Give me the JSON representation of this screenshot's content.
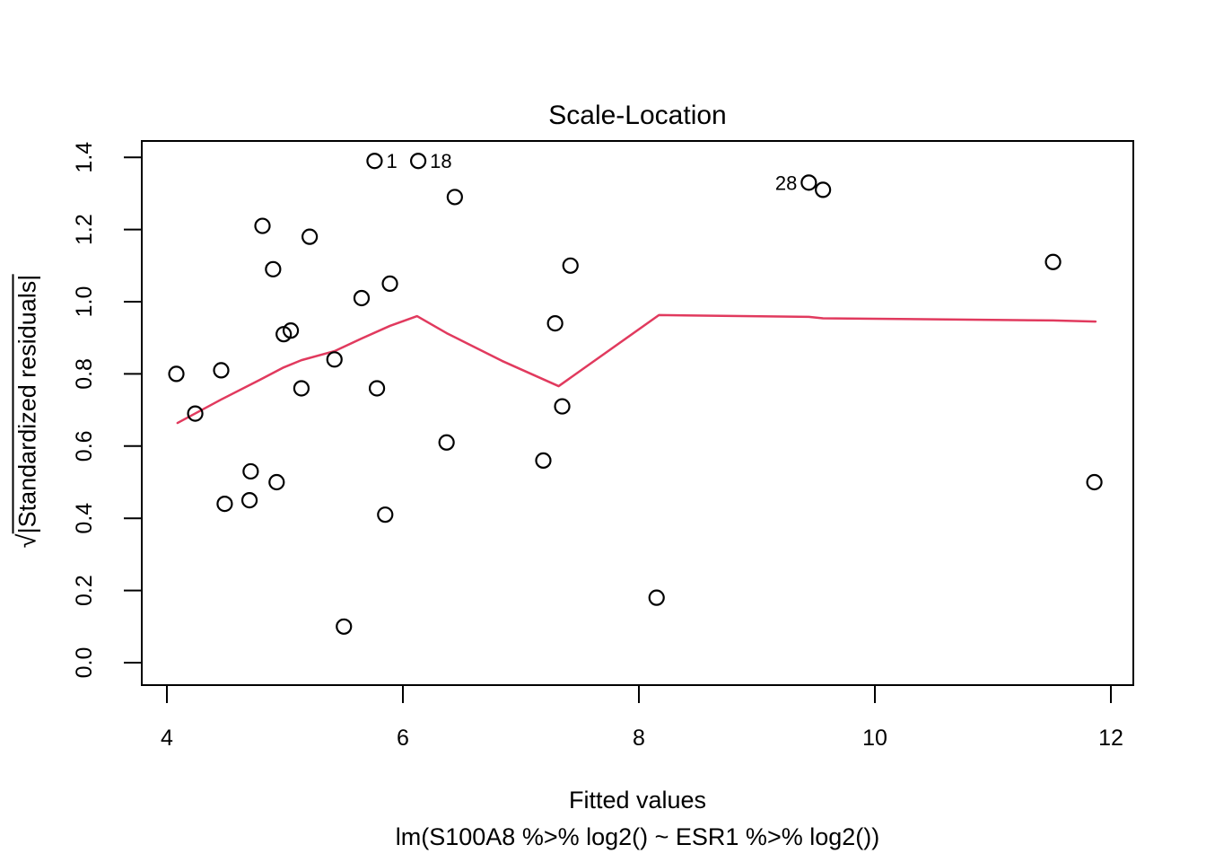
{
  "chart_data": {
    "type": "scatter",
    "title": "Scale-Location",
    "xlabel": "Fitted values",
    "sublabel": "lm(S100A8 %>% log2() ~ ESR1 %>% log2())",
    "ylabel_parts": {
      "radical": "√",
      "radicand": "|Standardized residuals|"
    },
    "xlim": [
      4,
      12
    ],
    "ylim": [
      0.0,
      1.4
    ],
    "grid": false,
    "legend": "none",
    "point_color": "#000000",
    "smooth_color": "#E13A5E",
    "xticks": [
      {
        "v": 4,
        "label": "4"
      },
      {
        "v": 6,
        "label": "6"
      },
      {
        "v": 8,
        "label": "8"
      },
      {
        "v": 10,
        "label": "10"
      },
      {
        "v": 12,
        "label": "12"
      }
    ],
    "yticks": [
      {
        "v": 0.0,
        "label": "0.0"
      },
      {
        "v": 0.2,
        "label": "0.2"
      },
      {
        "v": 0.4,
        "label": "0.4"
      },
      {
        "v": 0.6,
        "label": "0.6"
      },
      {
        "v": 0.8,
        "label": "0.8"
      },
      {
        "v": 1.0,
        "label": "1.0"
      },
      {
        "v": 1.2,
        "label": "1.2"
      },
      {
        "v": 1.4,
        "label": "1.4"
      }
    ],
    "points": [
      {
        "x": 4.08,
        "y": 0.8
      },
      {
        "x": 4.24,
        "y": 0.69
      },
      {
        "x": 4.46,
        "y": 0.81
      },
      {
        "x": 4.49,
        "y": 0.44
      },
      {
        "x": 4.7,
        "y": 0.45
      },
      {
        "x": 4.71,
        "y": 0.53
      },
      {
        "x": 4.81,
        "y": 1.21
      },
      {
        "x": 4.9,
        "y": 1.09
      },
      {
        "x": 4.93,
        "y": 0.5
      },
      {
        "x": 4.99,
        "y": 0.91
      },
      {
        "x": 5.05,
        "y": 0.92
      },
      {
        "x": 5.14,
        "y": 0.76
      },
      {
        "x": 5.21,
        "y": 1.18
      },
      {
        "x": 5.42,
        "y": 0.84
      },
      {
        "x": 5.5,
        "y": 0.1
      },
      {
        "x": 5.65,
        "y": 1.01
      },
      {
        "x": 5.76,
        "y": 1.39,
        "label": "1",
        "side": "right"
      },
      {
        "x": 5.78,
        "y": 0.76
      },
      {
        "x": 5.85,
        "y": 0.41
      },
      {
        "x": 5.89,
        "y": 1.05
      },
      {
        "x": 6.13,
        "y": 1.39,
        "label": "18",
        "side": "right"
      },
      {
        "x": 6.37,
        "y": 0.61
      },
      {
        "x": 6.44,
        "y": 1.29
      },
      {
        "x": 7.19,
        "y": 0.56
      },
      {
        "x": 7.29,
        "y": 0.94
      },
      {
        "x": 7.35,
        "y": 0.71
      },
      {
        "x": 7.42,
        "y": 1.1
      },
      {
        "x": 8.15,
        "y": 0.18
      },
      {
        "x": 9.44,
        "y": 1.33,
        "label": "28",
        "side": "left"
      },
      {
        "x": 9.56,
        "y": 1.31
      },
      {
        "x": 11.51,
        "y": 1.11
      },
      {
        "x": 11.86,
        "y": 0.5
      }
    ],
    "smooth": [
      {
        "x": 4.09,
        "y": 0.664
      },
      {
        "x": 4.46,
        "y": 0.729
      },
      {
        "x": 4.79,
        "y": 0.784
      },
      {
        "x": 4.99,
        "y": 0.818
      },
      {
        "x": 5.14,
        "y": 0.838
      },
      {
        "x": 5.42,
        "y": 0.863
      },
      {
        "x": 5.65,
        "y": 0.898
      },
      {
        "x": 5.89,
        "y": 0.933
      },
      {
        "x": 6.12,
        "y": 0.96
      },
      {
        "x": 6.37,
        "y": 0.913
      },
      {
        "x": 6.84,
        "y": 0.836
      },
      {
        "x": 7.32,
        "y": 0.766
      },
      {
        "x": 8.17,
        "y": 0.963
      },
      {
        "x": 9.44,
        "y": 0.958
      },
      {
        "x": 9.56,
        "y": 0.954
      },
      {
        "x": 11.51,
        "y": 0.948
      },
      {
        "x": 11.87,
        "y": 0.945
      }
    ]
  }
}
